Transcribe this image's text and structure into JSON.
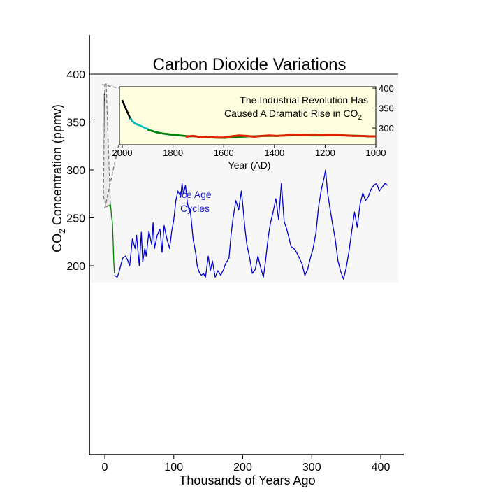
{
  "chart_data": [
    {
      "type": "line",
      "title": "Carbon Dioxide Variations",
      "xlabel": "Thousands of Years Ago",
      "ylabel_main": "CO",
      "ylabel_sub": "2",
      "ylabel_rest": " Concentration (ppmv)",
      "xlim": [
        -5,
        412
      ],
      "ylim": [
        180,
        400
      ],
      "x_ticks": [
        {
          "v": 0,
          "label": "0"
        },
        {
          "v": 100,
          "label": "100"
        },
        {
          "v": 200,
          "label": "200"
        },
        {
          "v": 300,
          "label": "300"
        },
        {
          "v": 400,
          "label": "400"
        }
      ],
      "y_ticks": [
        {
          "v": 200,
          "label": "200"
        },
        {
          "v": 250,
          "label": "250"
        },
        {
          "v": 300,
          "label": "300"
        },
        {
          "v": 350,
          "label": "350"
        },
        {
          "v": 400,
          "label": "400"
        }
      ],
      "annotation_line1": "Ice Age",
      "annotation_line2": "Cycles",
      "series": [
        {
          "color": "#0000cc",
          "x": [
            14,
            18,
            20,
            23,
            26,
            30,
            33,
            36,
            40,
            44,
            46,
            50,
            53,
            55,
            58,
            60,
            64,
            68,
            70,
            72,
            76,
            80,
            83,
            86,
            90,
            94,
            97,
            100,
            103,
            106,
            110,
            112,
            114,
            117,
            120,
            124,
            128,
            132,
            134,
            137,
            140,
            143,
            146,
            150,
            153,
            156,
            160,
            164,
            168,
            172,
            175,
            180,
            183,
            186,
            190,
            194,
            198,
            200,
            203,
            206,
            210,
            214,
            218,
            222,
            226,
            230,
            233,
            237,
            240,
            244,
            248,
            252,
            256,
            260,
            263,
            266,
            270,
            274,
            278,
            282,
            286,
            290,
            294,
            298,
            302,
            306,
            310,
            314,
            318,
            320,
            323,
            326,
            330,
            334,
            338,
            342,
            346,
            350,
            354,
            358,
            362,
            366,
            370,
            374,
            378,
            382,
            386,
            390,
            394,
            398,
            402,
            406,
            410
          ],
          "y": [
            190,
            188,
            192,
            200,
            208,
            210,
            206,
            200,
            228,
            218,
            232,
            200,
            235,
            204,
            218,
            210,
            236,
            222,
            245,
            218,
            232,
            238,
            214,
            242,
            228,
            218,
            236,
            248,
            268,
            278,
            272,
            286,
            275,
            284,
            264,
            258,
            228,
            212,
            200,
            193,
            190,
            192,
            188,
            210,
            195,
            205,
            188,
            195,
            190,
            196,
            202,
            208,
            232,
            250,
            268,
            258,
            278,
            264,
            240,
            222,
            208,
            192,
            196,
            210,
            198,
            188,
            205,
            230,
            244,
            256,
            270,
            248,
            286,
            246,
            240,
            232,
            220,
            218,
            214,
            208,
            202,
            190,
            196,
            208,
            218,
            234,
            262,
            280,
            292,
            300,
            276,
            262,
            244,
            228,
            205,
            194,
            186,
            198,
            215,
            236,
            256,
            240,
            264,
            276,
            268,
            272,
            280,
            284,
            286,
            278,
            282,
            286,
            284
          ]
        },
        {
          "color": "#008000",
          "x": [
            0,
            1,
            2,
            3,
            4,
            5,
            6,
            7,
            8,
            9,
            10,
            11,
            12,
            13,
            14
          ],
          "y": [
            278,
            275,
            277,
            270,
            268,
            264,
            268,
            262,
            265,
            258,
            250,
            245,
            228,
            205,
            192
          ]
        },
        {
          "color": "#00bbbb",
          "x": [
            -0.5,
            -0.4,
            -0.3,
            -0.2,
            -0.1,
            0
          ],
          "y": [
            355,
            330,
            310,
            292,
            282,
            279
          ]
        },
        {
          "color": "#000000",
          "x": [
            0,
            0,
            0
          ],
          "y": [
            380,
            340,
            290
          ]
        }
      ]
    },
    {
      "type": "line",
      "title_line1": "The Industrial Revolution Has",
      "title_line2_main": "Caused A Dramatic Rise in CO",
      "title_line2_sub": "2",
      "xlabel": "Year (AD)",
      "xlim": [
        2000,
        1000
      ],
      "ylim": [
        260,
        400
      ],
      "x_ticks": [
        {
          "v": 2000,
          "label": "2000"
        },
        {
          "v": 1800,
          "label": "1800"
        },
        {
          "v": 1600,
          "label": "1600"
        },
        {
          "v": 1400,
          "label": "1400"
        },
        {
          "v": 1200,
          "label": "1200"
        },
        {
          "v": 1000,
          "label": "1000"
        }
      ],
      "y_ticks": [
        {
          "v": 300,
          "label": "300"
        },
        {
          "v": 350,
          "label": "350"
        },
        {
          "v": 400,
          "label": "400"
        }
      ],
      "series": [
        {
          "color": "#000000",
          "x": [
            2000,
            1990,
            1980,
            1970,
            1960,
            1950,
            1940
          ],
          "y": [
            370,
            354,
            340,
            326,
            317,
            311,
            309
          ]
        },
        {
          "color": "#00bbbb",
          "x": [
            1970,
            1950,
            1930,
            1910,
            1890,
            1870,
            1850,
            1830,
            1810,
            1790,
            1770,
            1750
          ],
          "y": [
            324,
            311,
            306,
            300,
            295,
            290,
            287,
            285,
            283,
            282,
            281,
            280
          ]
        },
        {
          "color": "#008000",
          "x": [
            1900,
            1850,
            1800,
            1750,
            1700,
            1650,
            1600,
            1550,
            1500,
            1450,
            1400,
            1350,
            1300,
            1250,
            1200,
            1150,
            1100,
            1050,
            1000
          ],
          "y": [
            295,
            287,
            283,
            280,
            278,
            276,
            275,
            277,
            279,
            280,
            280,
            281,
            282,
            281,
            281,
            282,
            281,
            280,
            279
          ]
        },
        {
          "color": "#dd2200",
          "x": [
            1750,
            1720,
            1690,
            1660,
            1630,
            1600,
            1570,
            1540,
            1510,
            1480,
            1450,
            1420,
            1390,
            1360,
            1330,
            1300,
            1270,
            1240,
            1210,
            1180,
            1150,
            1120,
            1090,
            1060,
            1030,
            1000
          ],
          "y": [
            278,
            280,
            277,
            278,
            276,
            276,
            279,
            281,
            280,
            278,
            280,
            281,
            280,
            281,
            283,
            282,
            282,
            283,
            282,
            282,
            282,
            281,
            280,
            280,
            279,
            279
          ]
        }
      ]
    }
  ]
}
